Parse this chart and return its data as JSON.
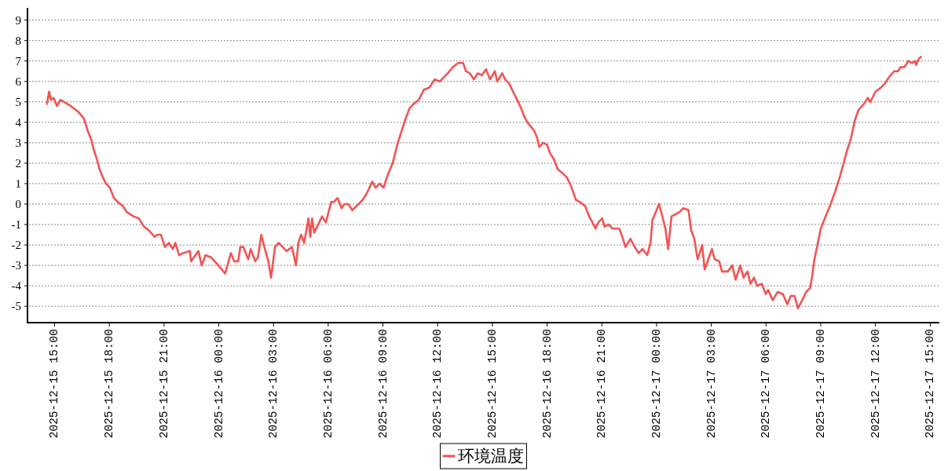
{
  "chart_data": {
    "type": "line",
    "x": [
      "2025-12-15T14:35",
      "2025-12-15T14:42",
      "2025-12-15T14:48",
      "2025-12-15T14:57",
      "2025-12-15T15:08",
      "2025-12-15T15:19",
      "2025-12-15T15:53",
      "2025-12-15T16:19",
      "2025-12-15T16:36",
      "2025-12-15T16:49",
      "2025-12-15T17:02",
      "2025-12-15T17:10",
      "2025-12-15T17:19",
      "2025-12-15T17:28",
      "2025-12-15T17:36",
      "2025-12-15T17:49",
      "2025-12-15T18:02",
      "2025-12-15T18:15",
      "2025-12-15T18:28",
      "2025-12-15T18:45",
      "2025-12-15T18:58",
      "2025-12-15T19:20",
      "2025-12-15T19:37",
      "2025-12-15T19:54",
      "2025-12-15T20:11",
      "2025-12-15T20:29",
      "2025-12-15T20:37",
      "2025-12-15T20:50",
      "2025-12-15T21:03",
      "2025-12-15T21:16",
      "2025-12-15T21:29",
      "2025-12-15T21:37",
      "2025-12-15T21:50",
      "2025-12-15T22:03",
      "2025-12-15T22:25",
      "2025-12-15T22:29",
      "2025-12-15T22:53",
      "2025-12-15T23:04",
      "2025-12-15T23:16",
      "2025-12-15T23:34",
      "2025-12-15T23:59",
      "2025-12-16T00:21",
      "2025-12-16T00:40",
      "2025-12-16T00:51",
      "2025-12-16T01:04",
      "2025-12-16T01:11",
      "2025-12-16T01:21",
      "2025-12-16T01:37",
      "2025-12-16T01:45",
      "2025-12-16T02:00",
      "2025-12-16T02:09",
      "2025-12-16T02:20",
      "2025-12-16T02:30",
      "2025-12-16T02:43",
      "2025-12-16T02:52",
      "2025-12-16T03:05",
      "2025-12-16T03:17",
      "2025-12-16T03:30",
      "2025-12-16T03:43",
      "2025-12-16T04:01",
      "2025-12-16T04:14",
      "2025-12-16T04:22",
      "2025-12-16T04:31",
      "2025-12-16T04:41",
      "2025-12-16T04:55",
      "2025-12-16T05:01",
      "2025-12-16T05:07",
      "2025-12-16T05:14",
      "2025-12-16T05:27",
      "2025-12-16T05:40",
      "2025-12-16T05:52",
      "2025-12-16T06:10",
      "2025-12-16T06:18",
      "2025-12-16T06:31",
      "2025-12-16T06:44",
      "2025-12-16T06:53",
      "2025-12-16T07:06",
      "2025-12-16T07:19",
      "2025-12-16T07:40",
      "2025-12-16T07:53",
      "2025-12-16T08:06",
      "2025-12-16T08:25",
      "2025-12-16T08:36",
      "2025-12-16T08:49",
      "2025-12-16T09:02",
      "2025-12-16T09:15",
      "2025-12-16T09:32",
      "2025-12-16T09:49",
      "2025-12-16T10:02",
      "2025-12-16T10:15",
      "2025-12-16T10:28",
      "2025-12-16T10:41",
      "2025-12-16T10:58",
      "2025-12-16T11:15",
      "2025-12-16T11:33",
      "2025-12-16T11:50",
      "2025-12-16T12:07",
      "2025-12-16T12:20",
      "2025-12-16T12:33",
      "2025-12-16T12:50",
      "2025-12-16T13:07",
      "2025-12-16T13:24",
      "2025-12-16T13:33",
      "2025-12-16T13:46",
      "2025-12-16T13:59",
      "2025-12-16T14:12",
      "2025-12-16T14:25",
      "2025-12-16T14:39",
      "2025-12-16T14:52",
      "2025-12-16T15:08",
      "2025-12-16T15:16",
      "2025-12-16T15:32",
      "2025-12-16T15:42",
      "2025-12-16T15:55",
      "2025-12-16T16:08",
      "2025-12-16T16:21",
      "2025-12-16T16:34",
      "2025-12-16T16:47",
      "2025-12-16T17:00",
      "2025-12-16T17:17",
      "2025-12-16T17:26",
      "2025-12-16T17:34",
      "2025-12-16T17:47",
      "2025-12-16T18:00",
      "2025-12-16T18:09",
      "2025-12-16T18:22",
      "2025-12-16T18:35",
      "2025-12-16T18:52",
      "2025-12-16T19:05",
      "2025-12-16T19:18",
      "2025-12-16T19:35",
      "2025-12-16T19:48",
      "2025-12-16T20:05",
      "2025-12-16T20:18",
      "2025-12-16T20:26",
      "2025-12-16T20:39",
      "2025-12-16T20:48",
      "2025-12-16T21:01",
      "2025-12-16T21:09",
      "2025-12-16T21:22",
      "2025-12-16T21:35",
      "2025-12-16T21:57",
      "2025-12-16T22:05",
      "2025-12-16T22:18",
      "2025-12-16T22:34",
      "2025-12-16T22:48",
      "2025-12-16T23:01",
      "2025-12-16T23:14",
      "2025-12-16T23:29",
      "2025-12-16T23:40",
      "2025-12-16T23:46",
      "2025-12-16T23:57",
      "2025-12-17T00:08",
      "2025-12-17T00:19",
      "2025-12-17T00:29",
      "2025-12-17T00:38",
      "2025-12-17T00:49",
      "2025-12-17T01:02",
      "2025-12-17T01:15",
      "2025-12-17T01:28",
      "2025-12-17T01:45",
      "2025-12-17T01:54",
      "2025-12-17T02:04",
      "2025-12-17T02:15",
      "2025-12-17T02:30",
      "2025-12-17T02:38",
      "2025-12-17T02:50",
      "2025-12-17T03:02",
      "2025-12-17T03:11",
      "2025-12-17T03:26",
      "2025-12-17T03:35",
      "2025-12-17T03:54",
      "2025-12-17T04:09",
      "2025-12-17T04:20",
      "2025-12-17T04:35",
      "2025-12-17T04:46",
      "2025-12-17T04:59",
      "2025-12-17T05:09",
      "2025-12-17T05:20",
      "2025-12-17T05:31",
      "2025-12-17T05:46",
      "2025-12-17T05:59",
      "2025-12-17T06:07",
      "2025-12-17T06:22",
      "2025-12-17T06:38",
      "2025-12-17T06:55",
      "2025-12-17T07:10",
      "2025-12-17T07:21",
      "2025-12-17T07:34",
      "2025-12-17T07:45",
      "2025-12-17T07:59",
      "2025-12-17T08:12",
      "2025-12-17T08:25",
      "2025-12-17T08:31",
      "2025-12-17T08:38",
      "2025-12-17T08:49",
      "2025-12-17T09:00",
      "2025-12-17T09:13",
      "2025-12-17T09:30",
      "2025-12-17T09:47",
      "2025-12-17T10:04",
      "2025-12-17T10:17",
      "2025-12-17T10:26",
      "2025-12-17T10:39",
      "2025-12-17T10:52",
      "2025-12-17T11:04",
      "2025-12-17T11:22",
      "2025-12-17T11:35",
      "2025-12-17T11:43",
      "2025-12-17T12:00",
      "2025-12-17T12:18",
      "2025-12-17T12:31",
      "2025-12-17T12:44",
      "2025-12-17T13:01",
      "2025-12-17T13:14",
      "2025-12-17T13:22",
      "2025-12-17T13:35",
      "2025-12-17T13:48",
      "2025-12-17T14:01",
      "2025-12-17T14:10",
      "2025-12-17T14:14",
      "2025-12-17T14:22",
      "2025-12-17T14:29"
    ],
    "series": [
      {
        "name": "环境温度",
        "color": "#f25454",
        "values": [
          4.9,
          5.5,
          5.1,
          5.2,
          4.8,
          5.1,
          4.8,
          4.5,
          4.2,
          3.6,
          3.1,
          2.6,
          2.2,
          1.7,
          1.4,
          1.0,
          0.8,
          0.3,
          0.1,
          -0.1,
          -0.4,
          -0.6,
          -0.7,
          -1.1,
          -1.3,
          -1.6,
          -1.5,
          -1.5,
          -2.1,
          -1.9,
          -2.2,
          -1.9,
          -2.5,
          -2.4,
          -2.3,
          -2.8,
          -2.3,
          -3.0,
          -2.5,
          -2.6,
          -3.0,
          -3.4,
          -2.4,
          -2.8,
          -2.8,
          -2.1,
          -2.1,
          -2.7,
          -2.2,
          -2.8,
          -2.6,
          -1.5,
          -2.1,
          -2.8,
          -3.6,
          -2.1,
          -1.9,
          -2.1,
          -2.3,
          -2.1,
          -3.0,
          -1.9,
          -1.5,
          -1.9,
          -0.7,
          -1.6,
          -0.7,
          -1.4,
          -1.0,
          -0.6,
          -0.9,
          0.1,
          0.1,
          0.3,
          -0.2,
          0.0,
          0.0,
          -0.3,
          0.0,
          0.2,
          0.5,
          1.1,
          0.8,
          1.0,
          0.8,
          1.4,
          2.0,
          3.0,
          3.6,
          4.2,
          4.7,
          4.9,
          5.1,
          5.6,
          5.7,
          6.1,
          6.0,
          6.2,
          6.4,
          6.7,
          6.9,
          6.9,
          6.5,
          6.4,
          6.1,
          6.4,
          6.3,
          6.6,
          6.1,
          6.5,
          6.0,
          6.4,
          6.1,
          5.9,
          5.5,
          5.1,
          4.7,
          4.2,
          3.9,
          3.6,
          3.3,
          2.8,
          3.0,
          2.9,
          2.5,
          2.2,
          1.7,
          1.5,
          1.3,
          0.9,
          0.2,
          0.1,
          -0.1,
          -0.6,
          -0.8,
          -1.2,
          -0.9,
          -0.7,
          -1.1,
          -1.0,
          -1.2,
          -1.2,
          -1.5,
          -2.1,
          -1.7,
          -2.1,
          -2.4,
          -2.2,
          -2.5,
          -1.9,
          -0.8,
          -0.4,
          0.0,
          -0.6,
          -1.2,
          -2.2,
          -0.6,
          -0.5,
          -0.4,
          -0.2,
          -0.3,
          -1.3,
          -1.7,
          -2.7,
          -2.0,
          -3.2,
          -2.7,
          -2.2,
          -2.7,
          -2.8,
          -3.3,
          -3.3,
          -3.0,
          -3.7,
          -3.0,
          -3.6,
          -3.3,
          -3.9,
          -3.6,
          -4.0,
          -3.9,
          -4.4,
          -4.2,
          -4.7,
          -4.3,
          -4.4,
          -4.9,
          -4.5,
          -4.5,
          -5.1,
          -4.7,
          -4.3,
          -4.1,
          -3.6,
          -2.8,
          -2.0,
          -1.2,
          -0.7,
          -0.1,
          0.6,
          1.4,
          2.1,
          2.6,
          3.2,
          4.1,
          4.6,
          4.9,
          5.2,
          5.0,
          5.5,
          5.7,
          5.9,
          6.2,
          6.5,
          6.5,
          6.7,
          6.7,
          7.0,
          6.9,
          7.0,
          6.8,
          7.1,
          7.2
        ]
      }
    ],
    "xlim": [
      "2025-12-15T13:31",
      "2025-12-17T15:30"
    ],
    "xticks": [
      {
        "value": "2025-12-15T15:00",
        "label": "2025-12-15 15:00"
      },
      {
        "value": "2025-12-15T18:00",
        "label": "2025-12-15 18:00"
      },
      {
        "value": "2025-12-15T21:00",
        "label": "2025-12-15 21:00"
      },
      {
        "value": "2025-12-16T00:00",
        "label": "2025-12-16 00:00"
      },
      {
        "value": "2025-12-16T03:00",
        "label": "2025-12-16 03:00"
      },
      {
        "value": "2025-12-16T06:00",
        "label": "2025-12-16 06:00"
      },
      {
        "value": "2025-12-16T09:00",
        "label": "2025-12-16 09:00"
      },
      {
        "value": "2025-12-16T12:00",
        "label": "2025-12-16 12:00"
      },
      {
        "value": "2025-12-16T15:00",
        "label": "2025-12-16 15:00"
      },
      {
        "value": "2025-12-16T18:00",
        "label": "2025-12-16 18:00"
      },
      {
        "value": "2025-12-16T21:00",
        "label": "2025-12-16 21:00"
      },
      {
        "value": "2025-12-17T00:00",
        "label": "2025-12-17 00:00"
      },
      {
        "value": "2025-12-17T03:00",
        "label": "2025-12-17 03:00"
      },
      {
        "value": "2025-12-17T06:00",
        "label": "2025-12-17 06:00"
      },
      {
        "value": "2025-12-17T09:00",
        "label": "2025-12-17 09:00"
      },
      {
        "value": "2025-12-17T12:00",
        "label": "2025-12-17 12:00"
      },
      {
        "value": "2025-12-17T15:00",
        "label": "2025-12-17 15:00"
      }
    ],
    "ylim": [
      -5.8,
      9.6
    ],
    "yticks": [
      -5,
      -4,
      -3,
      -2,
      -1,
      0,
      1,
      2,
      3,
      4,
      5,
      6,
      7,
      8,
      9
    ],
    "grid": "y",
    "legend": "bottom",
    "line_style": "solid"
  }
}
